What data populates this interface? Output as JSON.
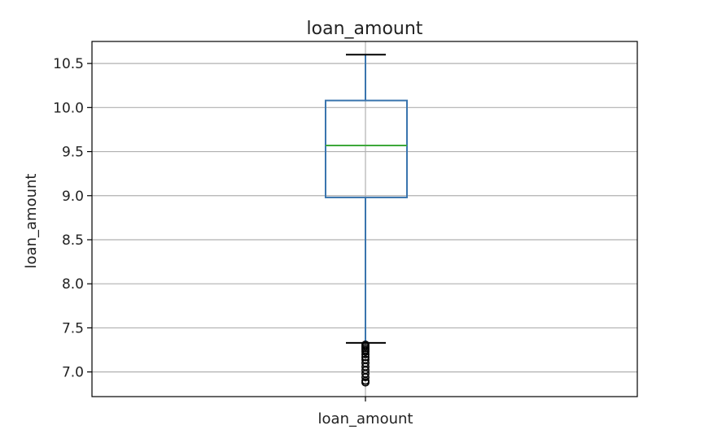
{
  "chart_data": {
    "type": "box",
    "title": "loan_amount",
    "xlabel": "",
    "ylabel": "loan_amount",
    "categories": [
      "loan_amount"
    ],
    "ylim": [
      6.72,
      10.75
    ],
    "yticks": [
      7.0,
      7.5,
      8.0,
      8.5,
      9.0,
      9.5,
      10.0,
      10.5
    ],
    "grid": true,
    "series": [
      {
        "name": "",
        "whisker_low": 7.33,
        "q1": 8.98,
        "median": 9.57,
        "q3": 10.08,
        "whisker_high": 10.6,
        "outliers": [
          7.31,
          7.29,
          7.27,
          7.25,
          7.23,
          7.2,
          7.17,
          7.14,
          7.1,
          7.06,
          7.02,
          6.98,
          6.94,
          6.9,
          6.88
        ]
      }
    ],
    "colors": {
      "box": "#3a75ae",
      "median": "#3da83a",
      "whisker_cap": "#000000",
      "grid": "#b0b0b0",
      "outlier": "#000000"
    }
  }
}
